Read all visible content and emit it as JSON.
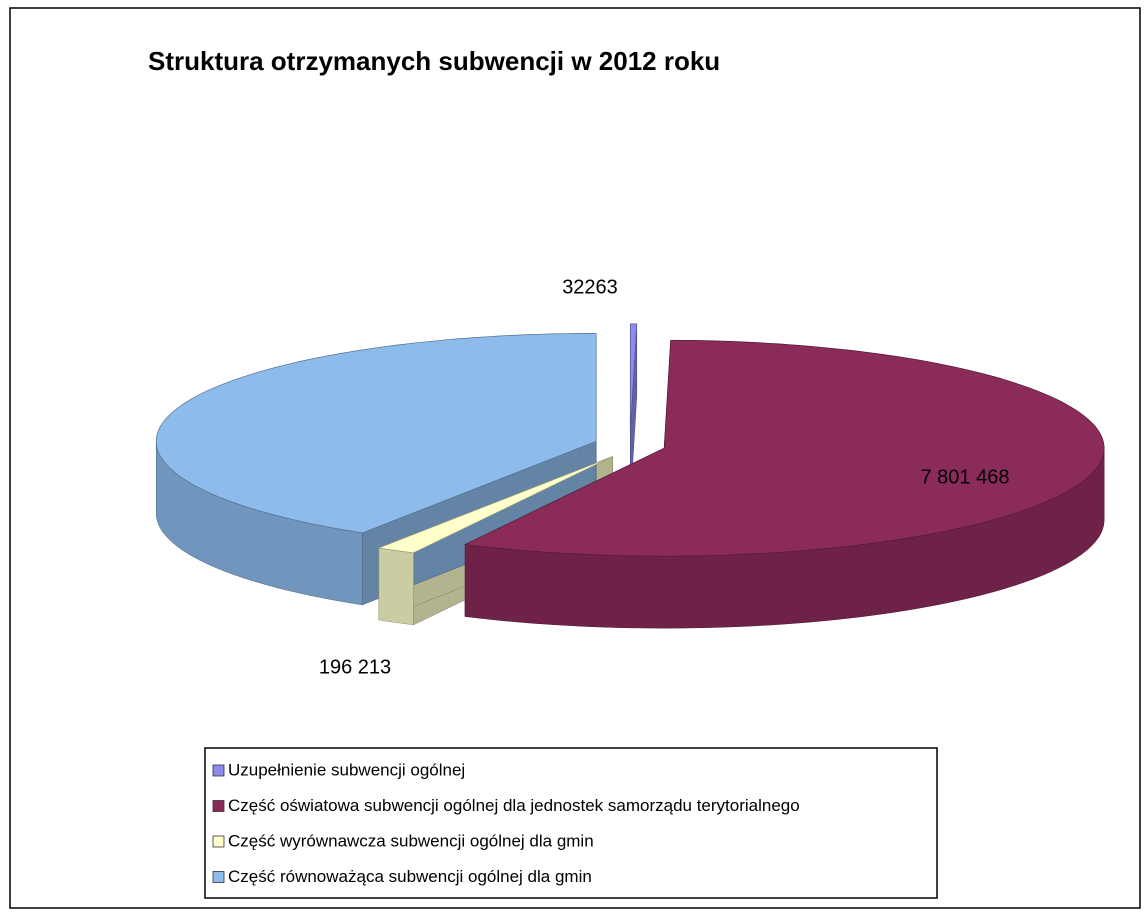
{
  "chart_data": {
    "type": "pie3d",
    "title": "Struktura otrzymanych subwencji w  2012 roku",
    "categories": [
      "Uzupełnienie subwencji ogólnej",
      "Część oświatowa subwencji ogólnej dla jednostek samorządu terytorialnego",
      "Część wyrównawcza subwencji ogólnej dla gmin",
      "Część równoważąca subwencji ogólnej dla gmin"
    ],
    "values": [
      32263,
      7801468,
      196213,
      5600000
    ],
    "value_labels": [
      "32263",
      "7 801 468",
      "196 213",
      null
    ],
    "colors": [
      "#8c8cf0",
      "#8b2b5a",
      "#ffffcc",
      "#8dbcec"
    ],
    "legend": "bottom"
  }
}
